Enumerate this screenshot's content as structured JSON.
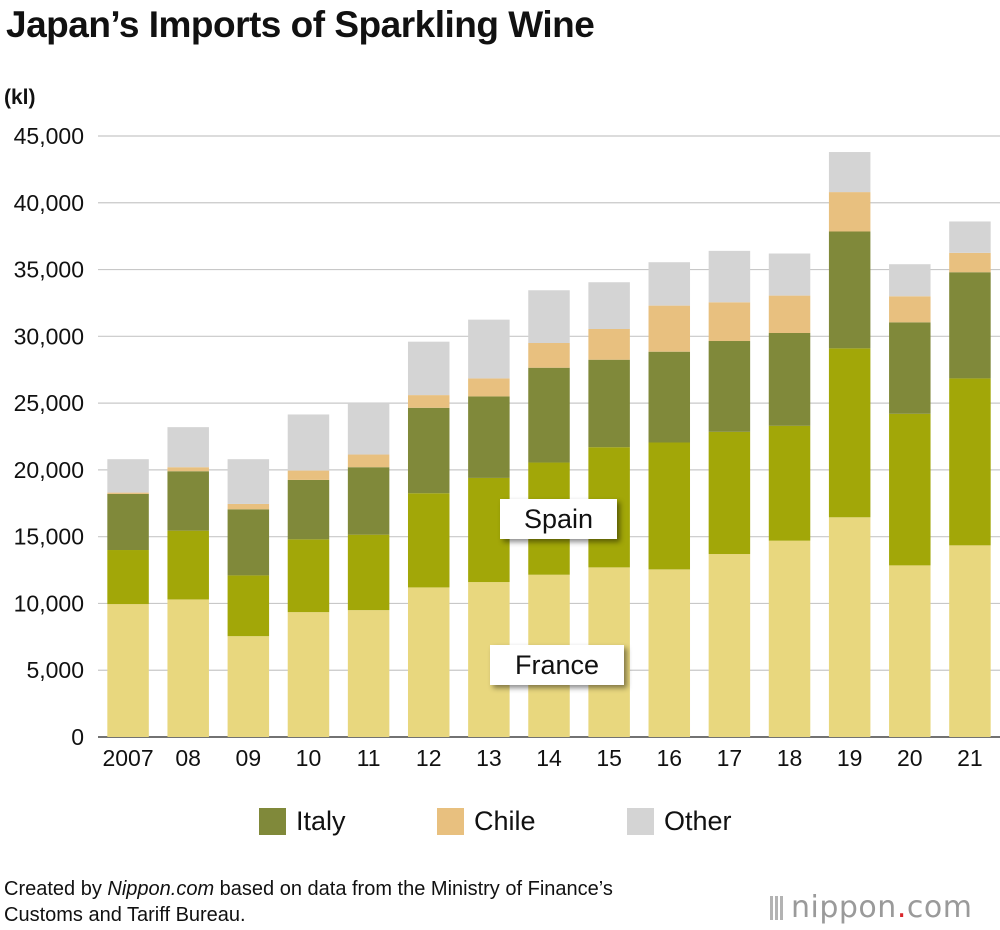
{
  "title": "Japan’s Imports of Sparkling Wine",
  "unit": "(kl)",
  "colors": {
    "France": "#e8d77e",
    "Spain": "#a2a708",
    "Italy": "#80893a",
    "Chile": "#e8c07f",
    "Other": "#d4d4d4"
  },
  "chart_data": {
    "type": "bar",
    "stacked": true,
    "categories": [
      "2007",
      "08",
      "09",
      "10",
      "11",
      "12",
      "13",
      "14",
      "15",
      "16",
      "17",
      "18",
      "19",
      "20",
      "21"
    ],
    "yticks": [
      "0",
      "5,000",
      "10,000",
      "15,000",
      "20,000",
      "25,000",
      "30,000",
      "35,000",
      "40,000",
      "45,000"
    ],
    "ylim": [
      0,
      45000
    ],
    "ylabel": "(kl)",
    "grid": true,
    "series": [
      {
        "name": "France",
        "values": [
          9950,
          10300,
          7550,
          9350,
          9500,
          11200,
          11600,
          12150,
          12700,
          12550,
          13700,
          14700,
          16450,
          12850,
          14350
        ]
      },
      {
        "name": "Spain",
        "values": [
          4050,
          5150,
          4550,
          5450,
          5650,
          7050,
          7800,
          8400,
          9000,
          9500,
          9150,
          8600,
          12650,
          11350,
          12500
        ]
      },
      {
        "name": "Italy",
        "values": [
          4200,
          4450,
          4950,
          4450,
          5050,
          6400,
          6100,
          7100,
          6550,
          6800,
          6800,
          6950,
          8750,
          6850,
          7950
        ]
      },
      {
        "name": "Chile",
        "values": [
          100,
          300,
          400,
          700,
          950,
          950,
          1350,
          1850,
          2300,
          3450,
          2900,
          2800,
          2950,
          1950,
          1450
        ]
      },
      {
        "name": "Other",
        "values": [
          2500,
          3000,
          3350,
          4200,
          3850,
          4000,
          4400,
          3950,
          3500,
          3250,
          3850,
          3150,
          3000,
          2400,
          2350
        ]
      }
    ],
    "legend": [
      "Italy",
      "Chile",
      "Other"
    ],
    "legend_position": "bottom",
    "callouts": [
      "Spain",
      "France"
    ]
  },
  "footer": {
    "prefix": "Created by ",
    "source_name": "Nippon.com",
    "rest_line1": " based on data from the Ministry of Finance’s",
    "line2": "Customs and Tariff Bureau."
  },
  "logo": {
    "main": "nippon",
    "dot": ".",
    "suffix": "com"
  }
}
